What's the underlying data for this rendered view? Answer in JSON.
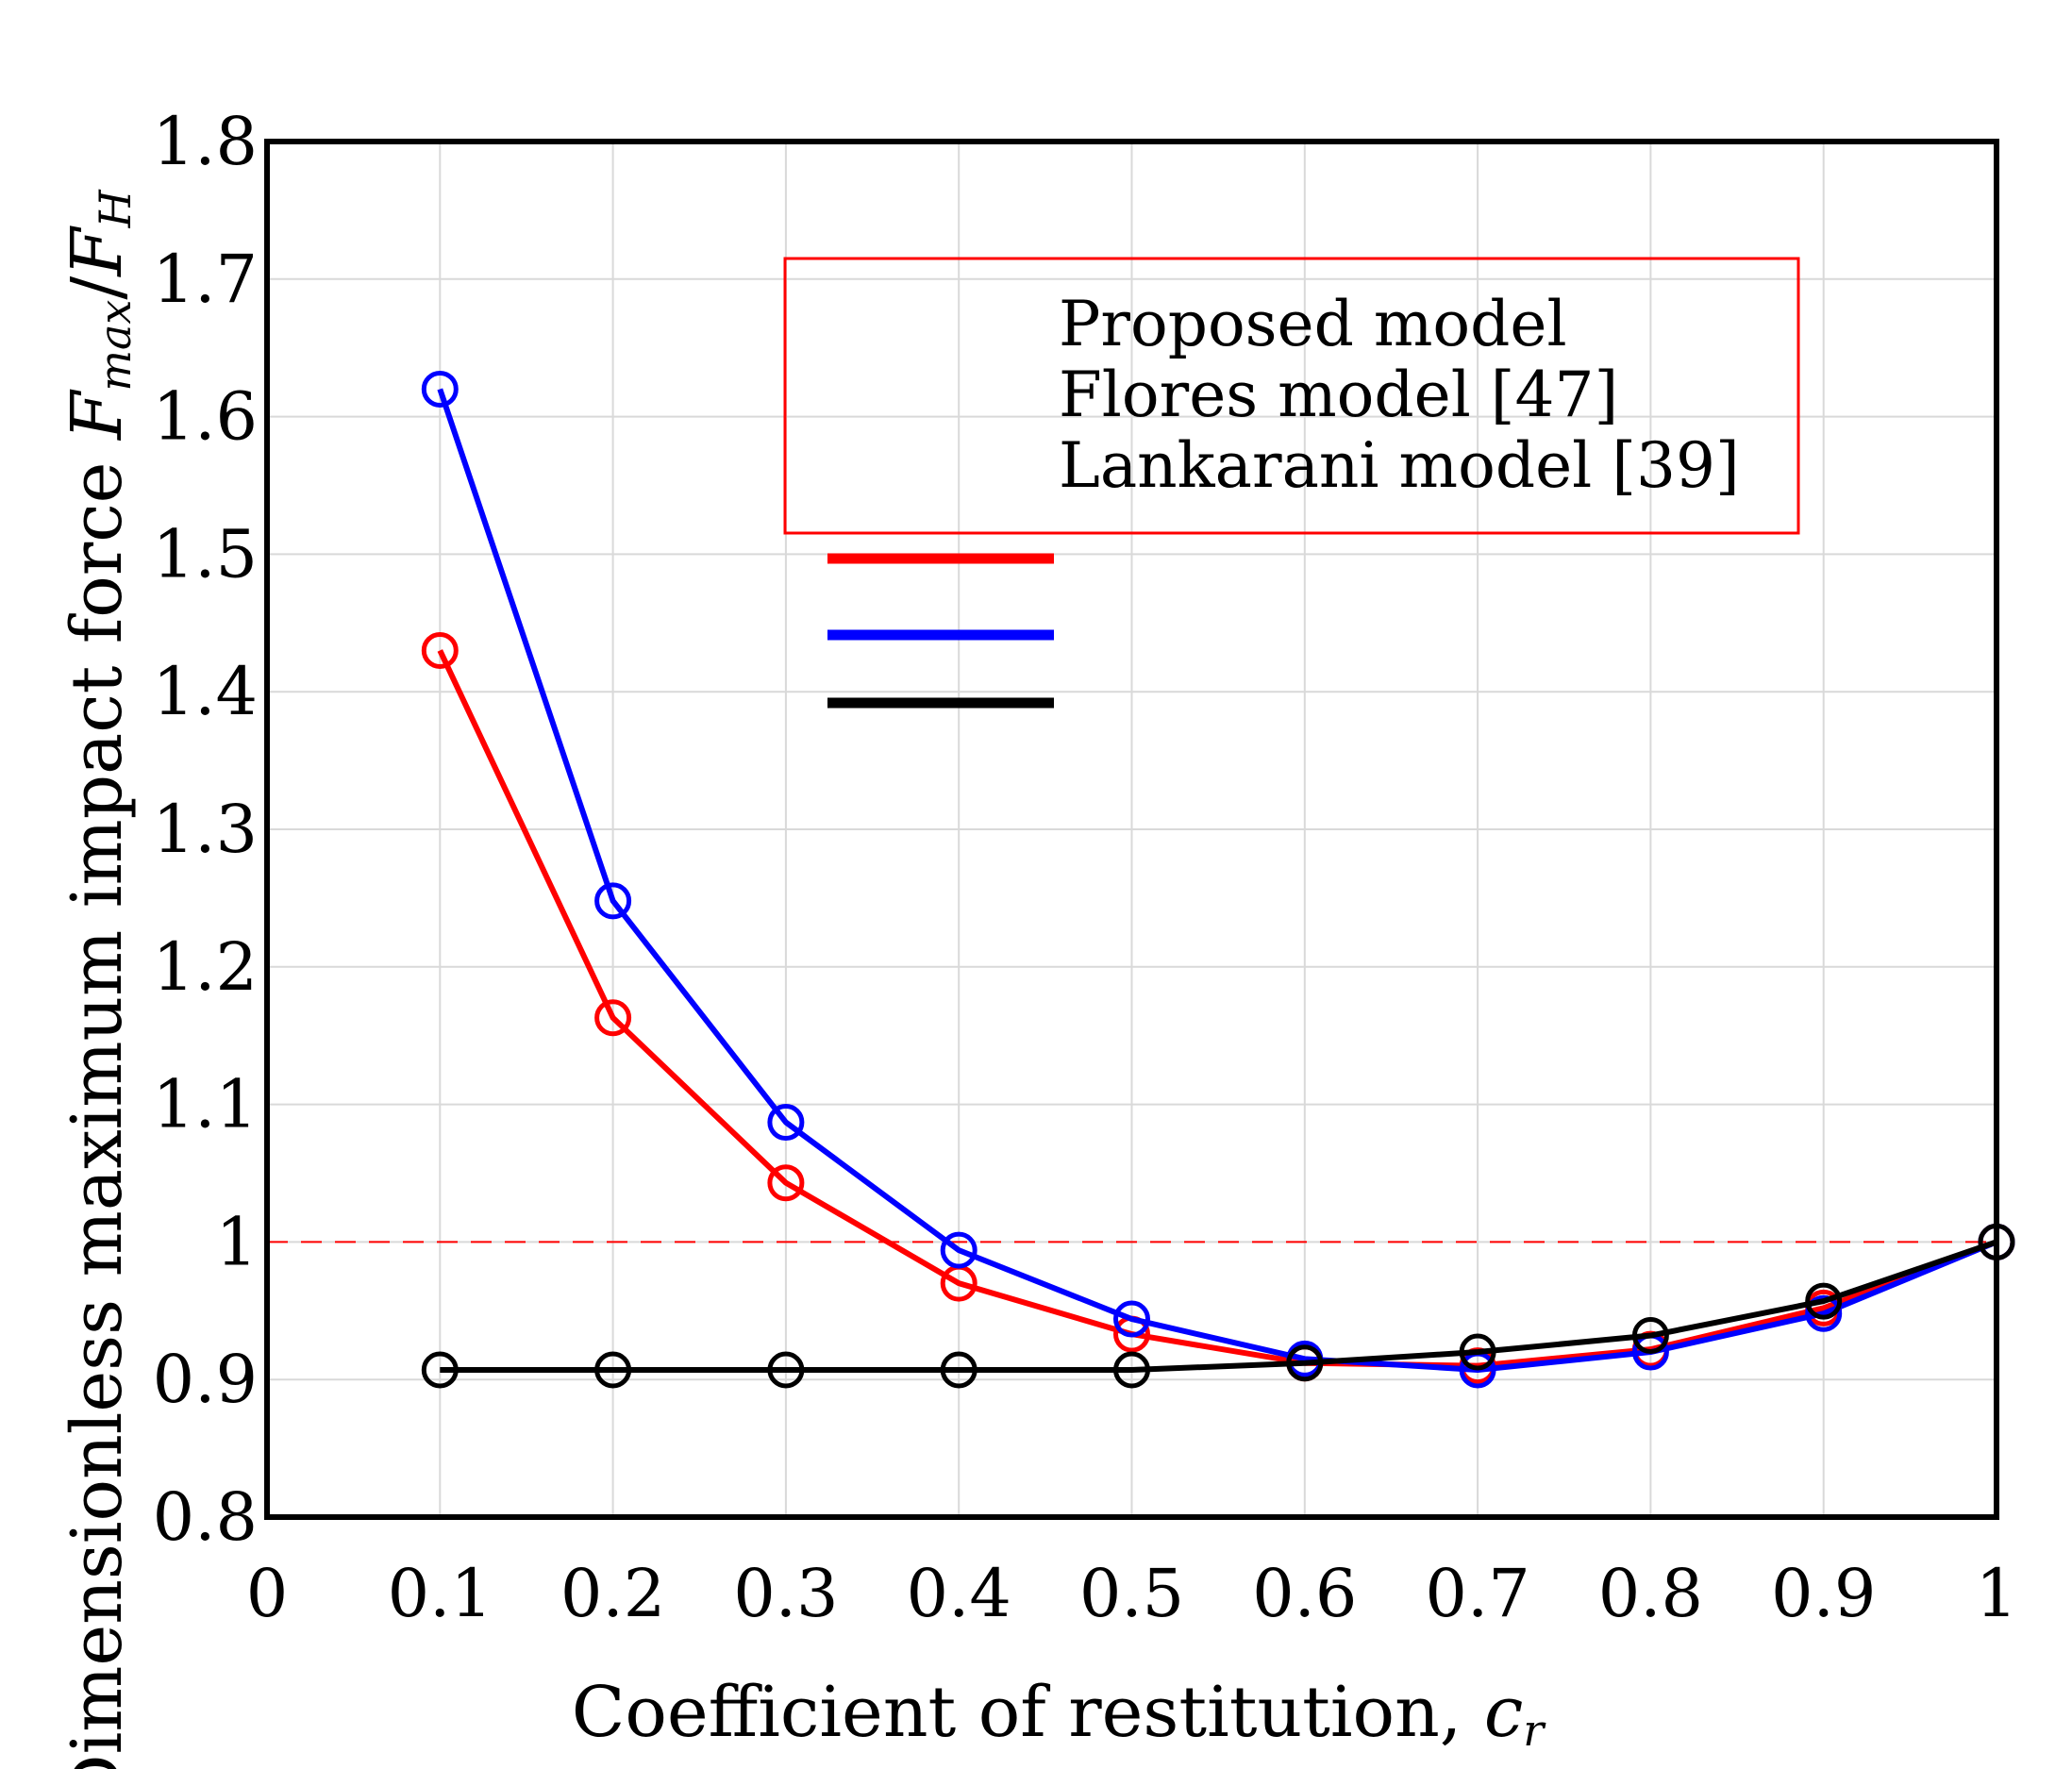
{
  "chart_data": {
    "type": "line",
    "title": "",
    "xlabel": "Coefficient of restitution, ",
    "xlabel_var": "c",
    "xlabel_sub": "r",
    "ylabel": "Dimensionless maximum impact force ",
    "ylabel_num": "F",
    "ylabel_num_sub": "max",
    "ylabel_slash": "/",
    "ylabel_den": "F",
    "ylabel_den_sub": "H",
    "xlim": [
      0,
      1
    ],
    "ylim": [
      0.8,
      1.8
    ],
    "xticks": [
      0,
      0.1,
      0.2,
      0.3,
      0.4,
      0.5,
      0.6,
      0.7,
      0.8,
      0.9,
      1
    ],
    "xtick_labels": [
      "0",
      "0.1",
      "0.2",
      "0.3",
      "0.4",
      "0.5",
      "0.6",
      "0.7",
      "0.8",
      "0.9",
      "1"
    ],
    "yticks": [
      0.8,
      0.9,
      1,
      1.1,
      1.2,
      1.3,
      1.4,
      1.5,
      1.6,
      1.7,
      1.8
    ],
    "ytick_labels": [
      "0.8",
      "0.9",
      "1",
      "1.1",
      "1.2",
      "1.3",
      "1.4",
      "1.5",
      "1.6",
      "1.7",
      "1.8"
    ],
    "grid": true,
    "reference_line": {
      "y": 1.0,
      "color": "#ff0000",
      "style": "dashed"
    },
    "x": [
      0.1,
      0.2,
      0.3,
      0.4,
      0.5,
      0.6,
      0.7,
      0.8,
      0.9,
      1.0
    ],
    "series": [
      {
        "name": "Proposed model",
        "color": "#ff0000",
        "values": [
          1.43,
          1.163,
          1.043,
          0.97,
          0.933,
          0.912,
          0.91,
          0.922,
          0.952,
          1.0
        ]
      },
      {
        "name": "Flores model [47]",
        "color": "#0000ff",
        "values": [
          1.62,
          1.248,
          1.087,
          0.994,
          0.944,
          0.915,
          0.907,
          0.92,
          0.948,
          1.0
        ]
      },
      {
        "name": "Lankarani model [39]",
        "color": "#000000",
        "values": [
          0.907,
          0.907,
          0.907,
          0.907,
          0.907,
          0.912,
          0.92,
          0.932,
          0.957,
          1.0
        ]
      }
    ],
    "legend": {
      "placement": "top-right",
      "border_color": "#ff0000",
      "entries": [
        "Proposed model",
        "Flores model [47]",
        "Lankarani model [39]"
      ]
    }
  }
}
